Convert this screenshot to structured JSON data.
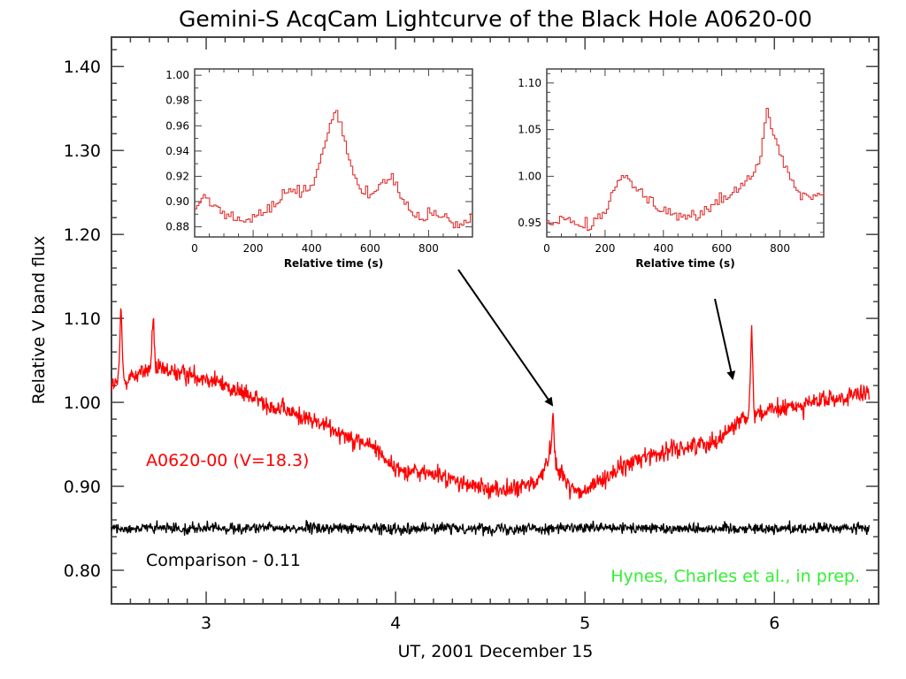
{
  "chart_data": {
    "type": "line",
    "title": "Gemini-S AcqCam Lightcurve of the Black Hole A0620-00",
    "xlabel": "UT, 2001 December 15",
    "ylabel": "Relative V band flux",
    "xlim": [
      2.5,
      6.55
    ],
    "ylim": [
      0.76,
      1.435
    ],
    "x_ticks": [
      "3",
      "4",
      "5",
      "6"
    ],
    "y_ticks": [
      "0.80",
      "0.90",
      "1.00",
      "1.10",
      "1.20",
      "1.30",
      "1.40"
    ],
    "grid": false,
    "series": [
      {
        "name": "A0620-00 (V=18.3)",
        "color": "#ff0000",
        "x": [
          2.5,
          2.7,
          3.0,
          3.3,
          3.6,
          3.9,
          4.0,
          4.2,
          4.4,
          4.6,
          4.75,
          4.82,
          4.9,
          4.98,
          5.1,
          5.3,
          5.5,
          5.7,
          5.85,
          6.0,
          6.2,
          6.5
        ],
        "values": [
          1.02,
          1.04,
          1.03,
          1.0,
          0.975,
          0.945,
          0.92,
          0.915,
          0.9,
          0.895,
          0.905,
          0.94,
          0.905,
          0.89,
          0.91,
          0.935,
          0.945,
          0.955,
          0.985,
          0.99,
          1.0,
          1.01
        ],
        "flares": [
          {
            "x": 2.55,
            "value": 1.11
          },
          {
            "x": 2.72,
            "value": 1.1
          },
          {
            "x": 4.83,
            "value": 0.985
          },
          {
            "x": 5.88,
            "value": 1.09
          }
        ]
      },
      {
        "name": "Comparison - 0.11",
        "color": "#000000",
        "x": [
          2.5,
          6.5
        ],
        "values": [
          0.85,
          0.85
        ]
      }
    ],
    "annotations": [
      {
        "text": "A0620-00 (V=18.3)",
        "color": "#ff0000"
      },
      {
        "text": "Comparison - 0.11",
        "color": "#000000"
      },
      {
        "text": "Hynes, Charles et al., in prep.",
        "color": "#33ee33"
      }
    ],
    "insets": [
      {
        "xlabel": "Relative time (s)",
        "xlim": [
          0,
          950
        ],
        "ylim": [
          0.872,
          1.005
        ],
        "x_ticks": [
          "0",
          "200",
          "400",
          "600",
          "800"
        ],
        "y_ticks": [
          "0.88",
          "0.90",
          "0.92",
          "0.94",
          "0.96",
          "0.98",
          "1.00"
        ],
        "x": [
          0,
          30,
          60,
          100,
          150,
          200,
          250,
          300,
          330,
          360,
          400,
          430,
          460,
          480,
          500,
          530,
          560,
          600,
          640,
          670,
          700,
          740,
          780,
          820,
          860,
          900,
          950
        ],
        "values": [
          0.895,
          0.905,
          0.898,
          0.89,
          0.886,
          0.888,
          0.895,
          0.905,
          0.91,
          0.905,
          0.915,
          0.935,
          0.96,
          0.97,
          0.955,
          0.93,
          0.91,
          0.905,
          0.915,
          0.92,
          0.905,
          0.89,
          0.888,
          0.89,
          0.885,
          0.88,
          0.888
        ]
      },
      {
        "xlabel": "Relative time (s)",
        "xlim": [
          0,
          950
        ],
        "ylim": [
          0.935,
          1.115
        ],
        "x_ticks": [
          "0",
          "200",
          "400",
          "600",
          "800"
        ],
        "y_ticks": [
          "0.95",
          "1.00",
          "1.05",
          "1.10"
        ],
        "x": [
          0,
          50,
          100,
          150,
          200,
          230,
          260,
          300,
          350,
          400,
          450,
          500,
          550,
          600,
          650,
          700,
          730,
          750,
          770,
          800,
          830,
          860,
          900,
          950
        ],
        "values": [
          0.95,
          0.955,
          0.952,
          0.948,
          0.965,
          0.99,
          1.0,
          0.99,
          0.975,
          0.965,
          0.955,
          0.958,
          0.965,
          0.975,
          0.985,
          1.0,
          1.02,
          1.075,
          1.05,
          1.02,
          0.995,
          0.985,
          0.978,
          0.98
        ]
      }
    ]
  }
}
